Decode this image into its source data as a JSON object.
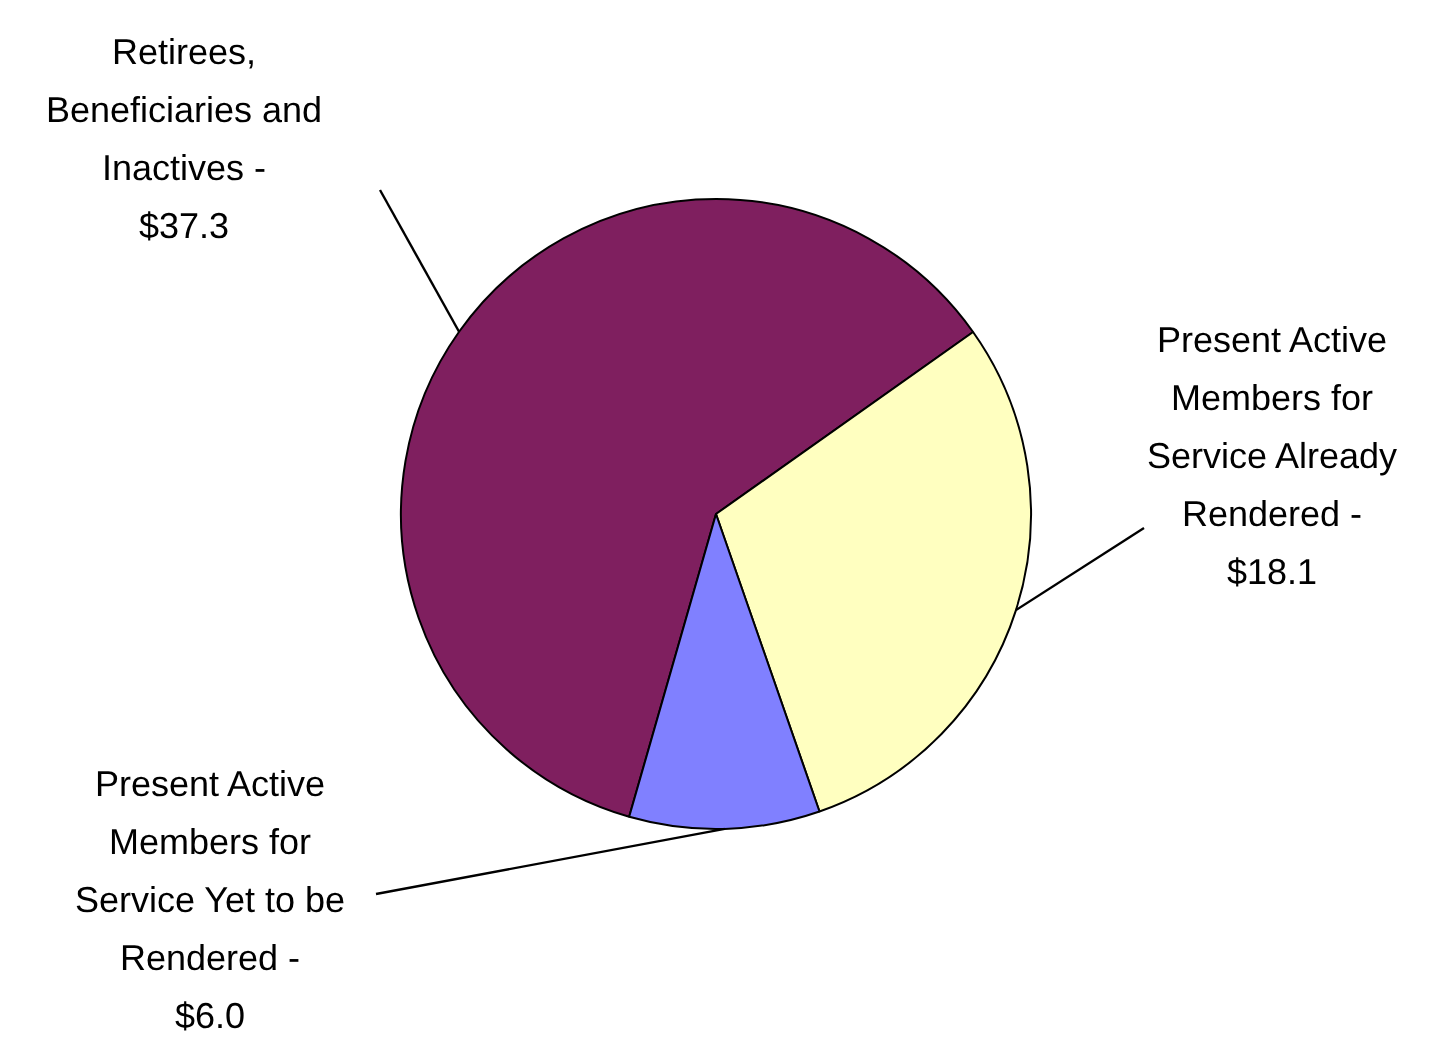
{
  "chart_data": {
    "type": "pie",
    "categories": [
      "Retirees, Beneficiaries and Inactives -",
      "Present Active Members for Service Already Rendered -",
      "Present Active Members for Service Yet to be Rendered -"
    ],
    "values": [
      37.3,
      18.1,
      6.0
    ],
    "value_labels": [
      "$37.3",
      "$18.1",
      "$6.0"
    ],
    "colors": [
      "#7f1f5f",
      "#ffffc0",
      "#8080ff"
    ],
    "legend": false
  }
}
